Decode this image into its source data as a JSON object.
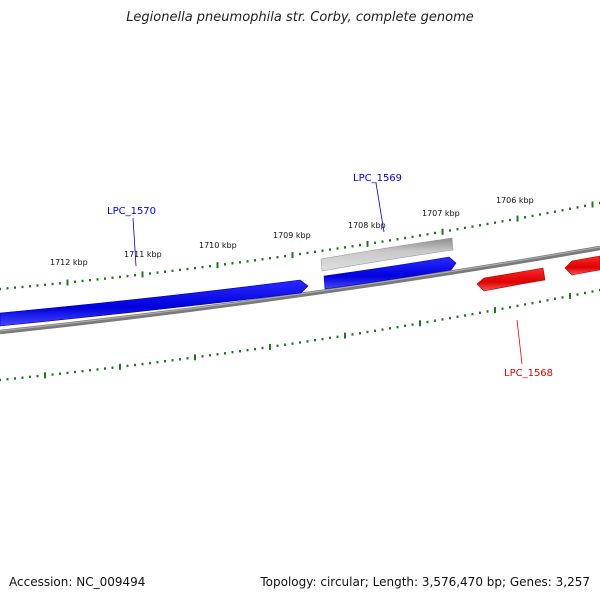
{
  "title": "Legionella pneumophila str. Corby, complete genome",
  "footer": {
    "accession": "Accession: NC_009494",
    "summary": "Topology: circular; Length: 3,576,470 bp; Genes: 3,257"
  },
  "ticks": [
    {
      "label": "1712 kbp"
    },
    {
      "label": "1711 kbp"
    },
    {
      "label": "1710 kbp"
    },
    {
      "label": "1709 kbp"
    },
    {
      "label": "1708 kbp"
    },
    {
      "label": "1707 kbp"
    },
    {
      "label": "1706 kbp"
    }
  ],
  "genes": [
    {
      "label": "LPC_1570",
      "color": "#0000ee"
    },
    {
      "label": "LPC_1569",
      "color": "#0000ee"
    },
    {
      "label": "LPC_1568",
      "color": "#ee0000"
    }
  ],
  "colors": {
    "backbone": "#808080",
    "ticks": "#1a7a1a",
    "forward_gene": "#0000ee",
    "reverse_gene": "#ee0000",
    "gray_feature": "#b8b8b8"
  }
}
